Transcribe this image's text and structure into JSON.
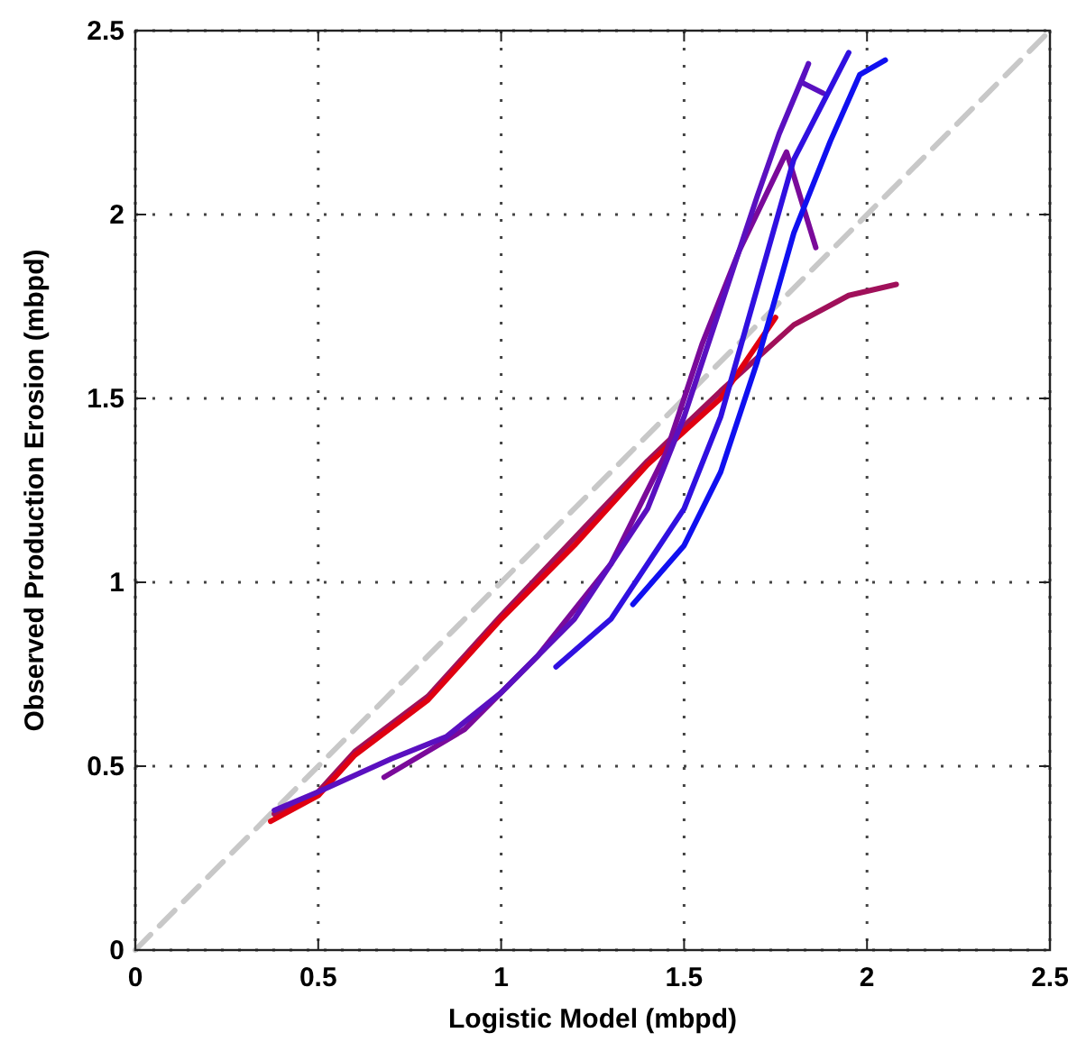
{
  "chart_data": {
    "type": "line",
    "xlabel": "Logistic Model (mbpd)",
    "ylabel": "Observed Production Erosion (mbpd)",
    "xlim": [
      0,
      2.5
    ],
    "ylim": [
      0,
      2.5
    ],
    "xticks": [
      0,
      0.5,
      1,
      1.5,
      2,
      2.5
    ],
    "yticks": [
      0,
      0.5,
      1,
      1.5,
      2,
      2.5
    ],
    "grid": true,
    "series": [
      {
        "color": "#c8c8c8",
        "line_style": "dashed",
        "x": [
          0,
          2.5
        ],
        "values": [
          0,
          2.5
        ]
      },
      {
        "color": "#a0105a",
        "x": [
          0.38,
          0.5,
          0.6,
          0.8,
          1.0,
          1.2,
          1.4,
          1.6,
          1.8,
          1.95,
          2.08
        ],
        "values": [
          0.37,
          0.43,
          0.54,
          0.69,
          0.91,
          1.12,
          1.33,
          1.52,
          1.7,
          1.78,
          1.81
        ]
      },
      {
        "color": "#e00010",
        "x": [
          0.37,
          0.5,
          0.6,
          0.8,
          1.0,
          1.2,
          1.4,
          1.6,
          1.75
        ],
        "values": [
          0.35,
          0.42,
          0.53,
          0.68,
          0.9,
          1.1,
          1.32,
          1.5,
          1.72
        ]
      },
      {
        "color": "#7a0a9a",
        "x": [
          0.68,
          0.9,
          1.1,
          1.3,
          1.45,
          1.55,
          1.65,
          1.78,
          1.86
        ],
        "values": [
          0.47,
          0.6,
          0.8,
          1.05,
          1.35,
          1.65,
          1.9,
          2.17,
          1.91
        ]
      },
      {
        "color": "#5a10c0",
        "x": [
          0.38,
          0.5,
          0.7,
          0.85,
          1.0,
          1.2,
          1.4,
          1.5,
          1.6,
          1.7,
          1.76,
          1.84,
          1.82,
          1.88
        ],
        "values": [
          0.38,
          0.43,
          0.52,
          0.58,
          0.7,
          0.9,
          1.2,
          1.45,
          1.75,
          2.05,
          2.22,
          2.41,
          2.36,
          2.33
        ]
      },
      {
        "color": "#3010e0",
        "x": [
          1.15,
          1.3,
          1.5,
          1.6,
          1.7,
          1.8,
          1.95
        ],
        "values": [
          0.77,
          0.9,
          1.2,
          1.45,
          1.8,
          2.15,
          2.44
        ]
      },
      {
        "color": "#1010f0",
        "x": [
          1.36,
          1.5,
          1.6,
          1.7,
          1.8,
          1.9,
          1.98,
          2.05
        ],
        "values": [
          0.94,
          1.1,
          1.3,
          1.6,
          1.95,
          2.2,
          2.38,
          2.42
        ]
      }
    ]
  }
}
